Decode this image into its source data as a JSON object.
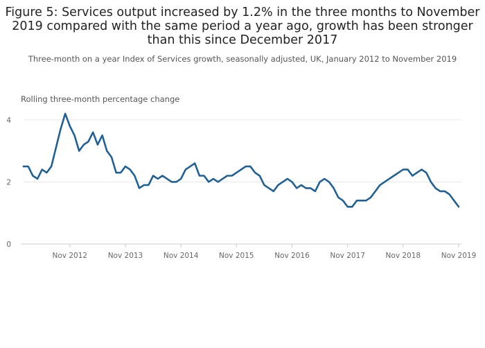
{
  "chart_data": {
    "type": "line",
    "title": "Figure 5: Services output increased by 1.2% in the three months to November 2019 compared with the same period a year ago, growth has been stronger than this since December 2017",
    "subtitle": "Three-month on a year Index of Services growth, seasonally adjusted, UK, January 2012 to November 2019",
    "ylabel": "Rolling three-month percentage change",
    "xlabel": "",
    "ylim": [
      0,
      4.4
    ],
    "yticks": [
      "0",
      "2",
      "4"
    ],
    "xticks": [
      "Nov 2012",
      "Nov 2013",
      "Nov 2014",
      "Nov 2015",
      "Nov 2016",
      "Nov 2017",
      "Nov 2018",
      "Nov 2019"
    ],
    "grid": true,
    "color": "#206095",
    "x": [
      "Jan 2012",
      "Feb 2012",
      "Mar 2012",
      "Apr 2012",
      "May 2012",
      "Jun 2012",
      "Jul 2012",
      "Aug 2012",
      "Sep 2012",
      "Oct 2012",
      "Nov 2012",
      "Dec 2012",
      "Jan 2013",
      "Feb 2013",
      "Mar 2013",
      "Apr 2013",
      "May 2013",
      "Jun 2013",
      "Jul 2013",
      "Aug 2013",
      "Sep 2013",
      "Oct 2013",
      "Nov 2013",
      "Dec 2013",
      "Jan 2014",
      "Feb 2014",
      "Mar 2014",
      "Apr 2014",
      "May 2014",
      "Jun 2014",
      "Jul 2014",
      "Aug 2014",
      "Sep 2014",
      "Oct 2014",
      "Nov 2014",
      "Dec 2014",
      "Jan 2015",
      "Feb 2015",
      "Mar 2015",
      "Apr 2015",
      "May 2015",
      "Jun 2015",
      "Jul 2015",
      "Aug 2015",
      "Sep 2015",
      "Oct 2015",
      "Nov 2015",
      "Dec 2015",
      "Jan 2016",
      "Feb 2016",
      "Mar 2016",
      "Apr 2016",
      "May 2016",
      "Jun 2016",
      "Jul 2016",
      "Aug 2016",
      "Sep 2016",
      "Oct 2016",
      "Nov 2016",
      "Dec 2016",
      "Jan 2017",
      "Feb 2017",
      "Mar 2017",
      "Apr 2017",
      "May 2017",
      "Jun 2017",
      "Jul 2017",
      "Aug 2017",
      "Sep 2017",
      "Oct 2017",
      "Nov 2017",
      "Dec 2017",
      "Jan 2018",
      "Feb 2018",
      "Mar 2018",
      "Apr 2018",
      "May 2018",
      "Jun 2018",
      "Jul 2018",
      "Aug 2018",
      "Sep 2018",
      "Oct 2018",
      "Nov 2018",
      "Dec 2018",
      "Jan 2019",
      "Feb 2019",
      "Mar 2019",
      "Apr 2019",
      "May 2019",
      "Jun 2019",
      "Jul 2019",
      "Aug 2019",
      "Sep 2019",
      "Oct 2019",
      "Nov 2019"
    ],
    "values": [
      2.5,
      2.5,
      2.2,
      2.1,
      2.4,
      2.3,
      2.5,
      3.1,
      3.7,
      4.2,
      3.8,
      3.5,
      3.0,
      3.2,
      3.3,
      3.6,
      3.2,
      3.5,
      3.0,
      2.8,
      2.3,
      2.3,
      2.5,
      2.4,
      2.2,
      1.8,
      1.9,
      1.9,
      2.2,
      2.1,
      2.2,
      2.1,
      2.0,
      2.0,
      2.1,
      2.4,
      2.5,
      2.6,
      2.2,
      2.2,
      2.0,
      2.1,
      2.0,
      2.1,
      2.2,
      2.2,
      2.3,
      2.4,
      2.5,
      2.5,
      2.3,
      2.2,
      1.9,
      1.8,
      1.7,
      1.9,
      2.0,
      2.1,
      2.0,
      1.8,
      1.9,
      1.8,
      1.8,
      1.7,
      2.0,
      2.1,
      2.0,
      1.8,
      1.5,
      1.4,
      1.2,
      1.2,
      1.4,
      1.4,
      1.4,
      1.5,
      1.7,
      1.9,
      2.0,
      2.1,
      2.2,
      2.3,
      2.4,
      2.4,
      2.2,
      2.3,
      2.4,
      2.3,
      2.0,
      1.8,
      1.7,
      1.7,
      1.6,
      1.4,
      1.2
    ]
  }
}
